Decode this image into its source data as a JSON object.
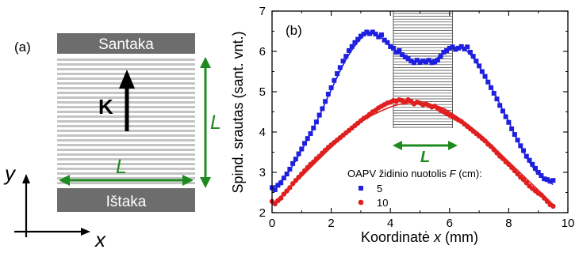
{
  "panel_a": {
    "label": "(a)",
    "top_block": "Santaka",
    "bottom_block": "Ištaka",
    "vector": "K",
    "length_vertical": "L",
    "length_horizontal": "L",
    "axis_y": "y",
    "axis_x": "x",
    "colors": {
      "block": "#6d6d6d",
      "stripe": "#c4c4c4",
      "green": "#1f8a1f",
      "black": "#000000"
    }
  },
  "chart_data": {
    "type": "scatter",
    "panel_label": "(b)",
    "xlabel_prefix": "Koordinatė ",
    "xlabel_var": "x",
    "xlabel_suffix": " (mm)",
    "ylabel": "Spind. srautas (sant. vnt.)",
    "xlim": [
      0,
      10
    ],
    "ylim": [
      2,
      7
    ],
    "xticks": [
      "0",
      "2",
      "4",
      "6",
      "8",
      "10"
    ],
    "yticks": [
      "2",
      "3",
      "4",
      "5",
      "6",
      "7"
    ],
    "legend_title_prefix": "OAPV židinio nuotolis ",
    "legend_title_var": "F",
    "legend_title_suffix": " (cm):",
    "legend_position": "lower-center",
    "region_label": "L",
    "region": [
      4.1,
      6.1
    ],
    "grid": false,
    "series": [
      {
        "name": "5",
        "color": "#1f1fe0",
        "marker": "square",
        "x": [
          0.0,
          0.1,
          0.2,
          0.3,
          0.4,
          0.5,
          0.6,
          0.7,
          0.8,
          0.9,
          1.0,
          1.1,
          1.2,
          1.3,
          1.4,
          1.5,
          1.6,
          1.7,
          1.8,
          1.9,
          2.0,
          2.1,
          2.2,
          2.3,
          2.4,
          2.5,
          2.6,
          2.7,
          2.8,
          2.9,
          3.0,
          3.1,
          3.2,
          3.3,
          3.4,
          3.5,
          3.6,
          3.7,
          3.8,
          3.9,
          4.0,
          4.1,
          4.2,
          4.3,
          4.4,
          4.5,
          4.6,
          4.7,
          4.8,
          4.9,
          5.0,
          5.1,
          5.2,
          5.3,
          5.4,
          5.5,
          5.6,
          5.7,
          5.8,
          5.9,
          6.0,
          6.1,
          6.2,
          6.3,
          6.4,
          6.5,
          6.6,
          6.7,
          6.8,
          6.9,
          7.0,
          7.1,
          7.2,
          7.3,
          7.4,
          7.5,
          7.6,
          7.7,
          7.8,
          7.9,
          8.0,
          8.1,
          8.2,
          8.3,
          8.4,
          8.5,
          8.6,
          8.7,
          8.8,
          8.9,
          9.0,
          9.1,
          9.2,
          9.3,
          9.4,
          9.5
        ],
        "y": [
          2.62,
          2.57,
          2.68,
          2.74,
          2.86,
          2.96,
          3.08,
          3.22,
          3.33,
          3.46,
          3.58,
          3.72,
          3.84,
          3.96,
          4.1,
          4.25,
          4.42,
          4.58,
          4.76,
          4.94,
          5.1,
          5.28,
          5.45,
          5.6,
          5.76,
          5.88,
          6.02,
          6.12,
          6.22,
          6.3,
          6.38,
          6.43,
          6.48,
          6.44,
          6.48,
          6.43,
          6.36,
          6.41,
          6.28,
          6.22,
          6.12,
          6.08,
          5.98,
          6.02,
          5.92,
          5.86,
          5.82,
          5.76,
          5.72,
          5.78,
          5.73,
          5.76,
          5.74,
          5.78,
          5.72,
          5.74,
          5.78,
          5.88,
          5.98,
          6.02,
          6.08,
          6.11,
          6.05,
          6.08,
          6.12,
          6.06,
          6.11,
          5.98,
          5.88,
          5.76,
          5.64,
          5.5,
          5.38,
          5.24,
          5.1,
          4.96,
          4.82,
          4.66,
          4.52,
          4.38,
          4.24,
          4.08,
          3.94,
          3.8,
          3.66,
          3.54,
          3.4,
          3.3,
          3.2,
          3.1,
          3.0,
          2.92,
          2.84,
          2.82,
          2.78,
          2.8
        ],
        "fit_x": [
          0.0,
          0.5,
          1.0,
          1.5,
          2.0,
          2.5,
          3.0,
          3.3,
          3.6,
          4.0,
          4.5,
          5.0,
          5.5,
          6.0,
          6.3,
          6.6,
          7.0,
          7.5,
          8.0,
          8.5,
          9.0,
          9.5
        ],
        "fit_y": [
          2.6,
          2.95,
          3.55,
          4.25,
          5.05,
          5.8,
          6.32,
          6.45,
          6.4,
          6.12,
          5.85,
          5.74,
          5.8,
          6.06,
          6.1,
          6.0,
          5.62,
          4.98,
          4.25,
          3.5,
          2.95,
          2.7
        ]
      },
      {
        "name": "10",
        "color": "#e01f1f",
        "marker": "circle",
        "x": [
          0.0,
          0.1,
          0.2,
          0.3,
          0.4,
          0.5,
          0.6,
          0.7,
          0.8,
          0.9,
          1.0,
          1.1,
          1.2,
          1.3,
          1.4,
          1.5,
          1.6,
          1.7,
          1.8,
          1.9,
          2.0,
          2.1,
          2.2,
          2.3,
          2.4,
          2.5,
          2.6,
          2.7,
          2.8,
          2.9,
          3.0,
          3.1,
          3.2,
          3.3,
          3.4,
          3.5,
          3.6,
          3.7,
          3.8,
          3.9,
          4.0,
          4.1,
          4.2,
          4.3,
          4.4,
          4.5,
          4.6,
          4.7,
          4.8,
          4.9,
          5.0,
          5.1,
          5.2,
          5.3,
          5.4,
          5.5,
          5.6,
          5.7,
          5.8,
          5.9,
          6.0,
          6.1,
          6.2,
          6.3,
          6.4,
          6.5,
          6.6,
          6.7,
          6.8,
          6.9,
          7.0,
          7.1,
          7.2,
          7.3,
          7.4,
          7.5,
          7.6,
          7.7,
          7.8,
          7.9,
          8.0,
          8.1,
          8.2,
          8.3,
          8.4,
          8.5,
          8.6,
          8.7,
          8.8,
          8.9,
          9.0,
          9.1,
          9.2,
          9.3,
          9.4,
          9.5
        ],
        "y": [
          2.28,
          2.22,
          2.3,
          2.36,
          2.46,
          2.54,
          2.62,
          2.72,
          2.8,
          2.88,
          2.96,
          3.04,
          3.12,
          3.2,
          3.26,
          3.34,
          3.4,
          3.48,
          3.55,
          3.62,
          3.68,
          3.74,
          3.8,
          3.86,
          3.92,
          3.98,
          4.04,
          4.1,
          4.16,
          4.22,
          4.28,
          4.34,
          4.38,
          4.44,
          4.5,
          4.54,
          4.6,
          4.64,
          4.68,
          4.72,
          4.74,
          4.78,
          4.76,
          4.8,
          4.78,
          4.74,
          4.8,
          4.76,
          4.7,
          4.74,
          4.72,
          4.68,
          4.7,
          4.66,
          4.62,
          4.64,
          4.58,
          4.54,
          4.5,
          4.46,
          4.42,
          4.38,
          4.34,
          4.3,
          4.26,
          4.2,
          4.14,
          4.08,
          4.02,
          3.96,
          3.9,
          3.84,
          3.78,
          3.7,
          3.64,
          3.56,
          3.48,
          3.4,
          3.34,
          3.26,
          3.2,
          3.12,
          3.04,
          2.96,
          2.88,
          2.82,
          2.74,
          2.66,
          2.6,
          2.54,
          2.48,
          2.44,
          2.36,
          2.28,
          2.2,
          2.16
        ],
        "fit_x": [
          0.0,
          1.0,
          2.0,
          3.0,
          4.0,
          4.6,
          5.0,
          5.5,
          6.0,
          7.0,
          8.0,
          9.0,
          9.5
        ],
        "fit_y": [
          2.2,
          2.9,
          3.62,
          4.25,
          4.62,
          4.72,
          4.72,
          4.66,
          4.5,
          3.96,
          3.26,
          2.56,
          2.2
        ]
      }
    ]
  }
}
